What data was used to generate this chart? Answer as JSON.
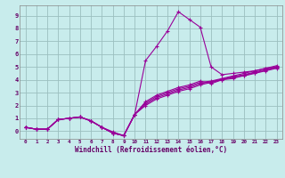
{
  "xlabel": "Windchill (Refroidissement éolien,°C)",
  "background_color": "#c8ecec",
  "line_color": "#990099",
  "grid_color": "#9bbfbf",
  "xlim": [
    -0.5,
    23.5
  ],
  "ylim": [
    -0.6,
    9.8
  ],
  "xticks": [
    0,
    1,
    2,
    3,
    4,
    5,
    6,
    7,
    8,
    9,
    10,
    11,
    12,
    13,
    14,
    15,
    16,
    17,
    18,
    19,
    20,
    21,
    22,
    23
  ],
  "yticks": [
    0,
    1,
    2,
    3,
    4,
    5,
    6,
    7,
    8,
    9
  ],
  "series": [
    [
      0.3,
      0.15,
      0.15,
      0.9,
      1.0,
      1.1,
      0.8,
      0.3,
      -0.05,
      -0.35,
      1.3,
      5.5,
      6.6,
      7.8,
      9.3,
      8.7,
      8.1,
      5.0,
      4.4,
      4.5,
      4.6,
      4.7,
      4.9,
      5.0
    ],
    [
      0.3,
      0.15,
      0.15,
      0.9,
      1.0,
      1.1,
      0.8,
      0.3,
      -0.15,
      -0.35,
      1.3,
      2.0,
      2.5,
      2.8,
      3.1,
      3.3,
      3.6,
      3.8,
      4.0,
      4.2,
      4.3,
      4.5,
      4.7,
      4.9
    ],
    [
      0.3,
      0.15,
      0.15,
      0.9,
      1.0,
      1.1,
      0.8,
      0.3,
      -0.15,
      -0.35,
      1.3,
      2.1,
      2.6,
      2.9,
      3.2,
      3.4,
      3.7,
      3.85,
      4.05,
      4.25,
      4.4,
      4.6,
      4.8,
      5.0
    ],
    [
      0.3,
      0.15,
      0.15,
      0.9,
      1.0,
      1.1,
      0.8,
      0.3,
      -0.15,
      -0.35,
      1.3,
      2.2,
      2.7,
      3.0,
      3.3,
      3.5,
      3.8,
      3.9,
      4.1,
      4.3,
      4.5,
      4.7,
      4.9,
      5.1
    ],
    [
      0.3,
      0.15,
      0.15,
      0.9,
      1.0,
      1.1,
      0.8,
      0.3,
      -0.15,
      -0.35,
      1.3,
      2.3,
      2.8,
      3.1,
      3.4,
      3.6,
      3.9,
      3.7,
      4.0,
      4.1,
      4.35,
      4.55,
      4.75,
      4.95
    ]
  ]
}
